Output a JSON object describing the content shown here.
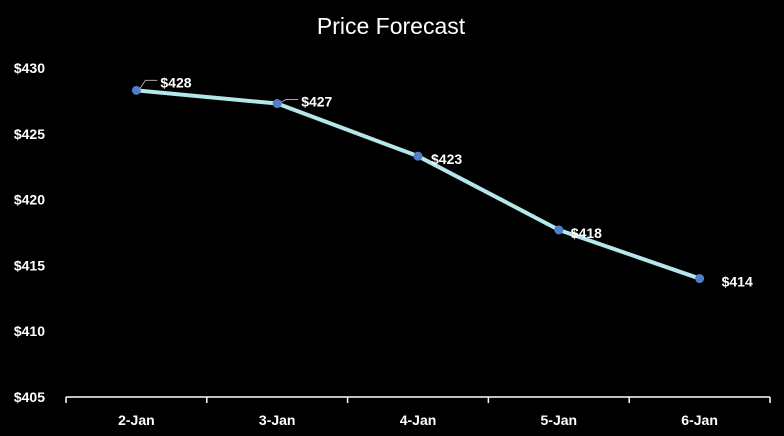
{
  "chart_data": {
    "type": "line",
    "title": "Price Forecast",
    "xlabel": "",
    "ylabel": "",
    "categories": [
      "2-Jan",
      "3-Jan",
      "4-Jan",
      "5-Jan",
      "6-Jan"
    ],
    "series": [
      {
        "values": [
          428.3,
          427.3,
          423.3,
          417.7,
          414.0
        ],
        "data_labels": [
          "$428",
          "$427",
          "$423",
          "$418",
          "$414"
        ]
      }
    ],
    "y_tick_labels": [
      "$430",
      "$425",
      "$420",
      "$415",
      "$410",
      "$405"
    ],
    "y_ticks": [
      430,
      425,
      420,
      415,
      410,
      405
    ],
    "ylim": [
      405,
      431
    ],
    "grid": false,
    "legend": "none",
    "colors": {
      "background": "#000000",
      "line": "#b3e7ea",
      "marker": "#4f7fc9",
      "text": "#ffffff",
      "axis": "#ffffff",
      "leader": "#a6a6a6"
    }
  }
}
